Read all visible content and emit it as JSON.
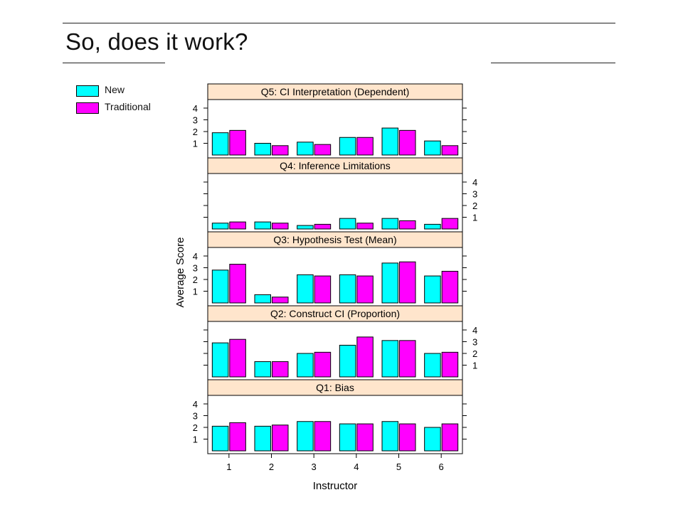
{
  "slide": {
    "title": "So, does it work?"
  },
  "legend": {
    "items": [
      {
        "label": "New",
        "color": "#00ffff"
      },
      {
        "label": "Traditional",
        "color": "#ff00ff"
      }
    ]
  },
  "colors": {
    "strip_bg": "#ffe5cc",
    "new": "#00ffff",
    "traditional": "#ff00ff"
  },
  "chart_data": {
    "type": "bar",
    "xlabel": "Instructor",
    "ylabel": "Average Score",
    "categories": [
      "1",
      "2",
      "3",
      "4",
      "5",
      "6"
    ],
    "ylim": [
      0,
      4.5
    ],
    "yticks": [
      1,
      2,
      3,
      4
    ],
    "grid": false,
    "legend_position": "top-left",
    "panels": [
      {
        "title": "Q5: CI Interpretation (Dependent)",
        "series": [
          {
            "name": "New",
            "values": [
              1.9,
              1.0,
              1.1,
              1.5,
              2.3,
              1.2
            ]
          },
          {
            "name": "Traditional",
            "values": [
              2.1,
              0.8,
              0.9,
              1.5,
              2.1,
              0.8
            ]
          }
        ]
      },
      {
        "title": "Q4: Inference Limitations",
        "series": [
          {
            "name": "New",
            "values": [
              0.5,
              0.6,
              0.3,
              0.9,
              0.9,
              0.4
            ]
          },
          {
            "name": "Traditional",
            "values": [
              0.6,
              0.5,
              0.4,
              0.5,
              0.7,
              0.9
            ]
          }
        ]
      },
      {
        "title": "Q3: Hypothesis Test (Mean)",
        "series": [
          {
            "name": "New",
            "values": [
              2.8,
              0.7,
              2.4,
              2.4,
              3.4,
              2.3
            ]
          },
          {
            "name": "Traditional",
            "values": [
              3.3,
              0.5,
              2.3,
              2.3,
              3.5,
              2.7
            ]
          }
        ]
      },
      {
        "title": "Q2: Construct CI (Proportion)",
        "series": [
          {
            "name": "New",
            "values": [
              2.9,
              1.3,
              2.0,
              2.7,
              3.1,
              2.0
            ]
          },
          {
            "name": "Traditional",
            "values": [
              3.2,
              1.3,
              2.1,
              3.4,
              3.1,
              2.1
            ]
          }
        ]
      },
      {
        "title": "Q1: Bias",
        "series": [
          {
            "name": "New",
            "values": [
              2.1,
              2.1,
              2.5,
              2.3,
              2.5,
              2.0
            ]
          },
          {
            "name": "Traditional",
            "values": [
              2.4,
              2.2,
              2.5,
              2.3,
              2.3,
              2.3
            ]
          }
        ]
      }
    ]
  }
}
